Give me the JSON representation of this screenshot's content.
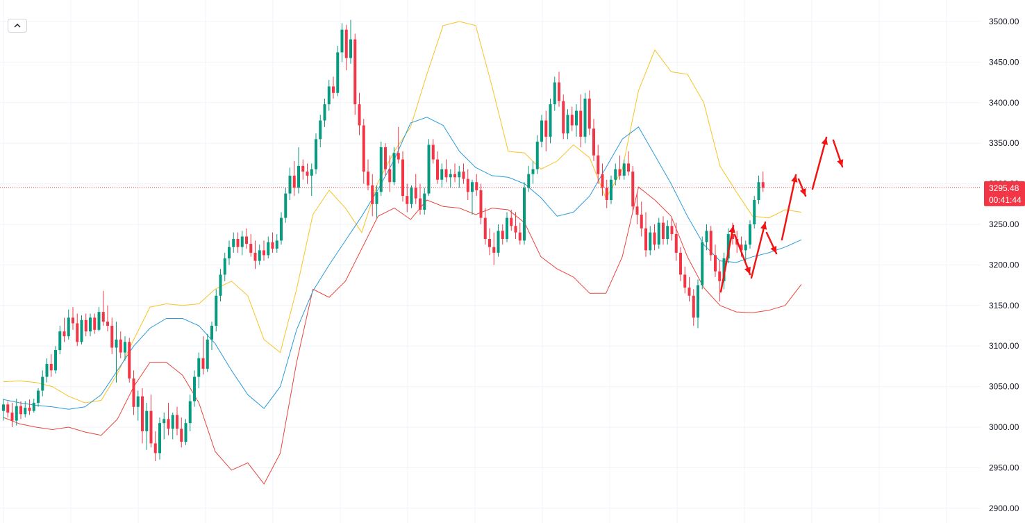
{
  "ui": {
    "collapse_icon": "chevron-up-icon",
    "top_strip_colors": [
      "#f23645",
      "#d1d4dc",
      "#089981"
    ]
  },
  "colors": {
    "up_candle": "#089981",
    "down_candle": "#f23645",
    "upper_band": "#f7c325",
    "middle_band": "#2b9bd9",
    "lower_band": "#e8453c",
    "annotation_arrows": "#f01414",
    "grid": "#f0f3fa",
    "current_price_line": "#f23645"
  },
  "chart_data": {
    "type": "candlestick",
    "title": "",
    "xlabel": "",
    "ylabel": "",
    "ylim": [
      2890,
      3520
    ],
    "grid": true,
    "y_ticks": [
      "2900.00",
      "2950.00",
      "3000.00",
      "3050.00",
      "3100.00",
      "3150.00",
      "3200.00",
      "3250.00",
      "3300.00",
      "3350.00",
      "3400.00",
      "3450.00",
      "3500.00"
    ],
    "current_price": {
      "value": 3295.48,
      "label": "3295.48",
      "countdown": "00:41:44"
    },
    "bollinger": {
      "upper": [
        3056,
        3057,
        3055,
        3050,
        3038,
        3030,
        3033,
        3066,
        3108,
        3148,
        3152,
        3150,
        3152,
        3170,
        3180,
        3162,
        3108,
        3092,
        3170,
        3262,
        3292,
        3270,
        3240,
        3302,
        3340,
        3370,
        3435,
        3495,
        3500,
        3495,
        3420,
        3340,
        3338,
        3318,
        3328,
        3348,
        3332,
        3282,
        3318,
        3415,
        3465,
        3438,
        3435,
        3400,
        3322,
        3290,
        3260,
        3258,
        3268,
        3265
      ],
      "middle": [
        3034,
        3030,
        3027,
        3025,
        3022,
        3025,
        3040,
        3070,
        3100,
        3122,
        3134,
        3134,
        3125,
        3103,
        3070,
        3040,
        3023,
        3050,
        3120,
        3168,
        3200,
        3230,
        3260,
        3293,
        3330,
        3375,
        3382,
        3372,
        3340,
        3320,
        3310,
        3308,
        3300,
        3283,
        3260,
        3265,
        3285,
        3320,
        3355,
        3370,
        3335,
        3300,
        3260,
        3225,
        3205,
        3203,
        3210,
        3215,
        3222,
        3231
      ],
      "lower": [
        3012,
        3004,
        3000,
        2997,
        3000,
        2994,
        2990,
        3010,
        3050,
        3080,
        3080,
        3064,
        3030,
        2970,
        2947,
        2956,
        2930,
        2968,
        3080,
        3170,
        3160,
        3180,
        3220,
        3260,
        3270,
        3256,
        3280,
        3272,
        3270,
        3262,
        3270,
        3268,
        3252,
        3210,
        3195,
        3185,
        3165,
        3165,
        3210,
        3296,
        3280,
        3260,
        3210,
        3172,
        3150,
        3142,
        3141,
        3144,
        3150,
        3176
      ]
    },
    "candles": [
      {
        "o": 3020,
        "h": 3035,
        "l": 3008,
        "c": 3028
      },
      {
        "o": 3028,
        "h": 3032,
        "l": 3012,
        "c": 3018
      },
      {
        "o": 3018,
        "h": 3030,
        "l": 3000,
        "c": 3008
      },
      {
        "o": 3008,
        "h": 3035,
        "l": 3002,
        "c": 3026
      },
      {
        "o": 3026,
        "h": 3032,
        "l": 3010,
        "c": 3016
      },
      {
        "o": 3016,
        "h": 3032,
        "l": 3012,
        "c": 3024
      },
      {
        "o": 3024,
        "h": 3034,
        "l": 3015,
        "c": 3020
      },
      {
        "o": 3020,
        "h": 3035,
        "l": 3018,
        "c": 3030
      },
      {
        "o": 3030,
        "h": 3048,
        "l": 3025,
        "c": 3045
      },
      {
        "o": 3045,
        "h": 3070,
        "l": 3038,
        "c": 3062
      },
      {
        "o": 3062,
        "h": 3085,
        "l": 3055,
        "c": 3078
      },
      {
        "o": 3078,
        "h": 3090,
        "l": 3062,
        "c": 3070
      },
      {
        "o": 3070,
        "h": 3100,
        "l": 3066,
        "c": 3095
      },
      {
        "o": 3095,
        "h": 3125,
        "l": 3090,
        "c": 3118
      },
      {
        "o": 3118,
        "h": 3135,
        "l": 3105,
        "c": 3112
      },
      {
        "o": 3112,
        "h": 3145,
        "l": 3108,
        "c": 3135
      },
      {
        "o": 3135,
        "h": 3148,
        "l": 3120,
        "c": 3128
      },
      {
        "o": 3128,
        "h": 3140,
        "l": 3100,
        "c": 3105
      },
      {
        "o": 3105,
        "h": 3138,
        "l": 3102,
        "c": 3132
      },
      {
        "o": 3132,
        "h": 3140,
        "l": 3112,
        "c": 3118
      },
      {
        "o": 3118,
        "h": 3140,
        "l": 3112,
        "c": 3135
      },
      {
        "o": 3135,
        "h": 3140,
        "l": 3115,
        "c": 3120
      },
      {
        "o": 3120,
        "h": 3148,
        "l": 3118,
        "c": 3142
      },
      {
        "o": 3142,
        "h": 3168,
        "l": 3125,
        "c": 3130
      },
      {
        "o": 3130,
        "h": 3150,
        "l": 3118,
        "c": 3125
      },
      {
        "o": 3125,
        "h": 3135,
        "l": 3090,
        "c": 3098
      },
      {
        "o": 3098,
        "h": 3130,
        "l": 3055,
        "c": 3108
      },
      {
        "o": 3108,
        "h": 3118,
        "l": 3085,
        "c": 3092
      },
      {
        "o": 3092,
        "h": 3112,
        "l": 3082,
        "c": 3105
      },
      {
        "o": 3105,
        "h": 3110,
        "l": 3055,
        "c": 3060
      },
      {
        "o": 3060,
        "h": 3070,
        "l": 3015,
        "c": 3025
      },
      {
        "o": 3025,
        "h": 3045,
        "l": 3008,
        "c": 3038
      },
      {
        "o": 3038,
        "h": 3048,
        "l": 2980,
        "c": 2995
      },
      {
        "o": 2995,
        "h": 3030,
        "l": 2972,
        "c": 3020
      },
      {
        "o": 3020,
        "h": 3040,
        "l": 2975,
        "c": 2980
      },
      {
        "o": 2980,
        "h": 2995,
        "l": 2958,
        "c": 2968
      },
      {
        "o": 2968,
        "h": 3012,
        "l": 2960,
        "c": 3005
      },
      {
        "o": 3005,
        "h": 3018,
        "l": 2985,
        "c": 3010
      },
      {
        "o": 3010,
        "h": 3030,
        "l": 2990,
        "c": 2998
      },
      {
        "o": 2998,
        "h": 3018,
        "l": 2985,
        "c": 3015
      },
      {
        "o": 3015,
        "h": 3025,
        "l": 2990,
        "c": 2998
      },
      {
        "o": 2998,
        "h": 3012,
        "l": 2975,
        "c": 2982
      },
      {
        "o": 2982,
        "h": 3010,
        "l": 2978,
        "c": 3005
      },
      {
        "o": 3005,
        "h": 3040,
        "l": 2995,
        "c": 3032
      },
      {
        "o": 3032,
        "h": 3070,
        "l": 3025,
        "c": 3062
      },
      {
        "o": 3062,
        "h": 3092,
        "l": 3048,
        "c": 3085
      },
      {
        "o": 3085,
        "h": 3112,
        "l": 3065,
        "c": 3072
      },
      {
        "o": 3072,
        "h": 3115,
        "l": 3068,
        "c": 3108
      },
      {
        "o": 3108,
        "h": 3130,
        "l": 3095,
        "c": 3125
      },
      {
        "o": 3125,
        "h": 3170,
        "l": 3118,
        "c": 3162
      },
      {
        "o": 3162,
        "h": 3195,
        "l": 3155,
        "c": 3188
      },
      {
        "o": 3188,
        "h": 3215,
        "l": 3180,
        "c": 3208
      },
      {
        "o": 3208,
        "h": 3230,
        "l": 3200,
        "c": 3222
      },
      {
        "o": 3222,
        "h": 3240,
        "l": 3215,
        "c": 3232
      },
      {
        "o": 3232,
        "h": 3240,
        "l": 3215,
        "c": 3222
      },
      {
        "o": 3222,
        "h": 3242,
        "l": 3212,
        "c": 3235
      },
      {
        "o": 3235,
        "h": 3245,
        "l": 3220,
        "c": 3226
      },
      {
        "o": 3226,
        "h": 3238,
        "l": 3210,
        "c": 3215
      },
      {
        "o": 3215,
        "h": 3230,
        "l": 3195,
        "c": 3205
      },
      {
        "o": 3205,
        "h": 3225,
        "l": 3200,
        "c": 3218
      },
      {
        "o": 3218,
        "h": 3230,
        "l": 3205,
        "c": 3212
      },
      {
        "o": 3212,
        "h": 3235,
        "l": 3208,
        "c": 3228
      },
      {
        "o": 3228,
        "h": 3240,
        "l": 3215,
        "c": 3220
      },
      {
        "o": 3220,
        "h": 3238,
        "l": 3215,
        "c": 3230
      },
      {
        "o": 3230,
        "h": 3265,
        "l": 3225,
        "c": 3258
      },
      {
        "o": 3258,
        "h": 3295,
        "l": 3252,
        "c": 3288
      },
      {
        "o": 3288,
        "h": 3320,
        "l": 3280,
        "c": 3310
      },
      {
        "o": 3310,
        "h": 3328,
        "l": 3285,
        "c": 3295
      },
      {
        "o": 3295,
        "h": 3345,
        "l": 3288,
        "c": 3322
      },
      {
        "o": 3322,
        "h": 3330,
        "l": 3305,
        "c": 3315
      },
      {
        "o": 3315,
        "h": 3325,
        "l": 3300,
        "c": 3310
      },
      {
        "o": 3310,
        "h": 3325,
        "l": 3285,
        "c": 3318
      },
      {
        "o": 3318,
        "h": 3362,
        "l": 3312,
        "c": 3355
      },
      {
        "o": 3355,
        "h": 3385,
        "l": 3345,
        "c": 3378
      },
      {
        "o": 3378,
        "h": 3405,
        "l": 3370,
        "c": 3398
      },
      {
        "o": 3398,
        "h": 3428,
        "l": 3390,
        "c": 3420
      },
      {
        "o": 3420,
        "h": 3432,
        "l": 3405,
        "c": 3412
      },
      {
        "o": 3412,
        "h": 3470,
        "l": 3408,
        "c": 3462
      },
      {
        "o": 3462,
        "h": 3498,
        "l": 3450,
        "c": 3490
      },
      {
        "o": 3490,
        "h": 3496,
        "l": 3440,
        "c": 3455
      },
      {
        "o": 3455,
        "h": 3502,
        "l": 3448,
        "c": 3478
      },
      {
        "o": 3478,
        "h": 3485,
        "l": 3385,
        "c": 3398
      },
      {
        "o": 3398,
        "h": 3412,
        "l": 3360,
        "c": 3372
      },
      {
        "o": 3372,
        "h": 3380,
        "l": 3300,
        "c": 3315
      },
      {
        "o": 3315,
        "h": 3330,
        "l": 3292,
        "c": 3298
      },
      {
        "o": 3298,
        "h": 3312,
        "l": 3260,
        "c": 3275
      },
      {
        "o": 3275,
        "h": 3298,
        "l": 3258,
        "c": 3290
      },
      {
        "o": 3290,
        "h": 3352,
        "l": 3285,
        "c": 3345
      },
      {
        "o": 3345,
        "h": 3350,
        "l": 3310,
        "c": 3318
      },
      {
        "o": 3318,
        "h": 3335,
        "l": 3290,
        "c": 3302
      },
      {
        "o": 3302,
        "h": 3345,
        "l": 3298,
        "c": 3338
      },
      {
        "o": 3338,
        "h": 3370,
        "l": 3325,
        "c": 3330
      },
      {
        "o": 3330,
        "h": 3340,
        "l": 3278,
        "c": 3285
      },
      {
        "o": 3285,
        "h": 3300,
        "l": 3265,
        "c": 3275
      },
      {
        "o": 3275,
        "h": 3298,
        "l": 3270,
        "c": 3295
      },
      {
        "o": 3295,
        "h": 3312,
        "l": 3275,
        "c": 3282
      },
      {
        "o": 3282,
        "h": 3300,
        "l": 3262,
        "c": 3268
      },
      {
        "o": 3268,
        "h": 3295,
        "l": 3262,
        "c": 3288
      },
      {
        "o": 3288,
        "h": 3355,
        "l": 3285,
        "c": 3348
      },
      {
        "o": 3348,
        "h": 3355,
        "l": 3325,
        "c": 3330
      },
      {
        "o": 3330,
        "h": 3340,
        "l": 3300,
        "c": 3305
      },
      {
        "o": 3305,
        "h": 3325,
        "l": 3295,
        "c": 3318
      },
      {
        "o": 3318,
        "h": 3330,
        "l": 3302,
        "c": 3308
      },
      {
        "o": 3308,
        "h": 3318,
        "l": 3295,
        "c": 3312
      },
      {
        "o": 3312,
        "h": 3325,
        "l": 3302,
        "c": 3308
      },
      {
        "o": 3308,
        "h": 3322,
        "l": 3295,
        "c": 3315
      },
      {
        "o": 3315,
        "h": 3325,
        "l": 3300,
        "c": 3306
      },
      {
        "o": 3306,
        "h": 3318,
        "l": 3280,
        "c": 3290
      },
      {
        "o": 3290,
        "h": 3305,
        "l": 3262,
        "c": 3302
      },
      {
        "o": 3302,
        "h": 3312,
        "l": 3285,
        "c": 3292
      },
      {
        "o": 3292,
        "h": 3300,
        "l": 3250,
        "c": 3258
      },
      {
        "o": 3258,
        "h": 3270,
        "l": 3225,
        "c": 3232
      },
      {
        "o": 3232,
        "h": 3245,
        "l": 3212,
        "c": 3222
      },
      {
        "o": 3222,
        "h": 3240,
        "l": 3200,
        "c": 3215
      },
      {
        "o": 3215,
        "h": 3250,
        "l": 3210,
        "c": 3242
      },
      {
        "o": 3242,
        "h": 3250,
        "l": 3225,
        "c": 3232
      },
      {
        "o": 3232,
        "h": 3265,
        "l": 3228,
        "c": 3258
      },
      {
        "o": 3258,
        "h": 3268,
        "l": 3242,
        "c": 3248
      },
      {
        "o": 3248,
        "h": 3265,
        "l": 3232,
        "c": 3240
      },
      {
        "o": 3240,
        "h": 3252,
        "l": 3225,
        "c": 3230
      },
      {
        "o": 3230,
        "h": 3302,
        "l": 3225,
        "c": 3295
      },
      {
        "o": 3295,
        "h": 3322,
        "l": 3290,
        "c": 3312
      },
      {
        "o": 3312,
        "h": 3328,
        "l": 3300,
        "c": 3318
      },
      {
        "o": 3318,
        "h": 3360,
        "l": 3312,
        "c": 3352
      },
      {
        "o": 3352,
        "h": 3385,
        "l": 3345,
        "c": 3378
      },
      {
        "o": 3378,
        "h": 3390,
        "l": 3340,
        "c": 3358
      },
      {
        "o": 3358,
        "h": 3405,
        "l": 3350,
        "c": 3398
      },
      {
        "o": 3398,
        "h": 3432,
        "l": 3390,
        "c": 3425
      },
      {
        "o": 3425,
        "h": 3438,
        "l": 3395,
        "c": 3402
      },
      {
        "o": 3402,
        "h": 3410,
        "l": 3355,
        "c": 3362
      },
      {
        "o": 3362,
        "h": 3392,
        "l": 3355,
        "c": 3385
      },
      {
        "o": 3385,
        "h": 3395,
        "l": 3365,
        "c": 3372
      },
      {
        "o": 3372,
        "h": 3398,
        "l": 3358,
        "c": 3390
      },
      {
        "o": 3390,
        "h": 3410,
        "l": 3345,
        "c": 3358
      },
      {
        "o": 3358,
        "h": 3412,
        "l": 3350,
        "c": 3405
      },
      {
        "o": 3405,
        "h": 3415,
        "l": 3360,
        "c": 3368
      },
      {
        "o": 3368,
        "h": 3380,
        "l": 3328,
        "c": 3335
      },
      {
        "o": 3335,
        "h": 3348,
        "l": 3300,
        "c": 3312
      },
      {
        "o": 3312,
        "h": 3325,
        "l": 3285,
        "c": 3295
      },
      {
        "o": 3295,
        "h": 3305,
        "l": 3270,
        "c": 3280
      },
      {
        "o": 3280,
        "h": 3310,
        "l": 3275,
        "c": 3305
      },
      {
        "o": 3305,
        "h": 3325,
        "l": 3298,
        "c": 3318
      },
      {
        "o": 3318,
        "h": 3335,
        "l": 3305,
        "c": 3310
      },
      {
        "o": 3310,
        "h": 3330,
        "l": 3305,
        "c": 3325
      },
      {
        "o": 3325,
        "h": 3340,
        "l": 3310,
        "c": 3315
      },
      {
        "o": 3315,
        "h": 3322,
        "l": 3265,
        "c": 3272
      },
      {
        "o": 3272,
        "h": 3290,
        "l": 3250,
        "c": 3262
      },
      {
        "o": 3262,
        "h": 3278,
        "l": 3235,
        "c": 3245
      },
      {
        "o": 3245,
        "h": 3265,
        "l": 3210,
        "c": 3218
      },
      {
        "o": 3218,
        "h": 3248,
        "l": 3212,
        "c": 3240
      },
      {
        "o": 3240,
        "h": 3250,
        "l": 3218,
        "c": 3225
      },
      {
        "o": 3225,
        "h": 3258,
        "l": 3220,
        "c": 3252
      },
      {
        "o": 3252,
        "h": 3260,
        "l": 3225,
        "c": 3232
      },
      {
        "o": 3232,
        "h": 3255,
        "l": 3225,
        "c": 3248
      },
      {
        "o": 3248,
        "h": 3258,
        "l": 3230,
        "c": 3238
      },
      {
        "o": 3238,
        "h": 3252,
        "l": 3205,
        "c": 3215
      },
      {
        "o": 3215,
        "h": 3222,
        "l": 3180,
        "c": 3188
      },
      {
        "o": 3188,
        "h": 3198,
        "l": 3165,
        "c": 3172
      },
      {
        "o": 3172,
        "h": 3185,
        "l": 3155,
        "c": 3162
      },
      {
        "o": 3162,
        "h": 3170,
        "l": 3125,
        "c": 3135
      },
      {
        "o": 3135,
        "h": 3182,
        "l": 3122,
        "c": 3175
      },
      {
        "o": 3175,
        "h": 3235,
        "l": 3170,
        "c": 3228
      },
      {
        "o": 3228,
        "h": 3250,
        "l": 3218,
        "c": 3242
      },
      {
        "o": 3242,
        "h": 3248,
        "l": 3205,
        "c": 3212
      },
      {
        "o": 3212,
        "h": 3225,
        "l": 3185,
        "c": 3192
      },
      {
        "o": 3192,
        "h": 3205,
        "l": 3155,
        "c": 3180
      },
      {
        "o": 3180,
        "h": 3215,
        "l": 3170,
        "c": 3208
      },
      {
        "o": 3208,
        "h": 3245,
        "l": 3202,
        "c": 3238
      },
      {
        "o": 3238,
        "h": 3252,
        "l": 3225,
        "c": 3232
      },
      {
        "o": 3232,
        "h": 3242,
        "l": 3215,
        "c": 3225
      },
      {
        "o": 3225,
        "h": 3235,
        "l": 3210,
        "c": 3218
      },
      {
        "o": 3218,
        "h": 3230,
        "l": 3205,
        "c": 3225
      },
      {
        "o": 3225,
        "h": 3255,
        "l": 3220,
        "c": 3250
      },
      {
        "o": 3250,
        "h": 3285,
        "l": 3245,
        "c": 3280
      },
      {
        "o": 3280,
        "h": 3310,
        "l": 3275,
        "c": 3302
      },
      {
        "o": 3302,
        "h": 3315,
        "l": 3290,
        "c": 3295
      }
    ]
  }
}
